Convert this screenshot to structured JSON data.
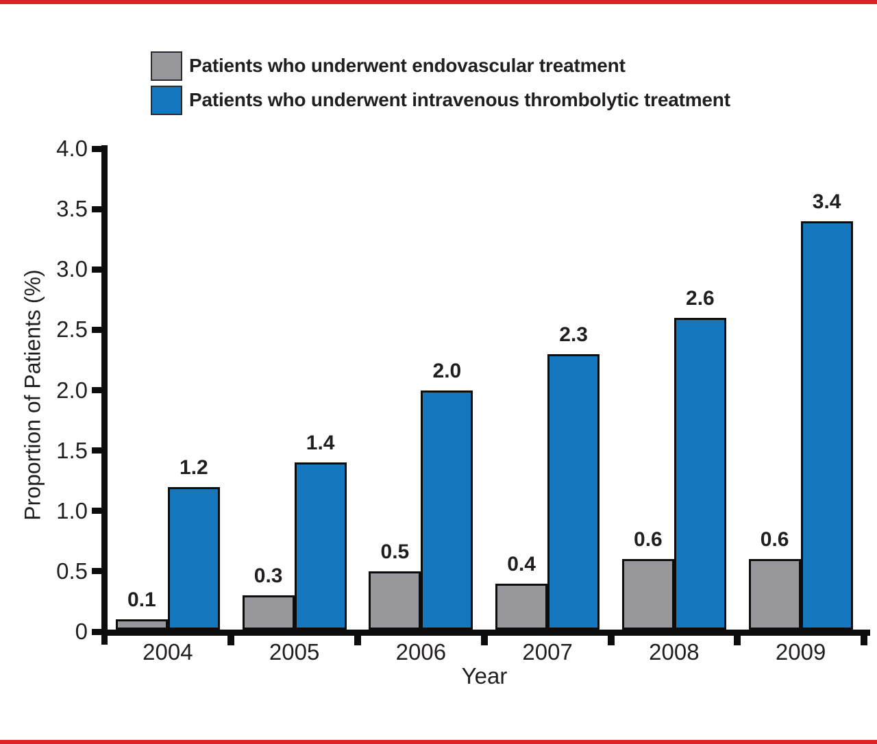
{
  "figure": {
    "border_color": "#DE2127",
    "background_color": "#FFFFFF",
    "text_color": "#221E1F",
    "axis_color": "#0D0D0D"
  },
  "legend": {
    "position": "top-left",
    "items": [
      {
        "label": "Patients who underwent endovascular treatment",
        "swatch_color": "#98989C"
      },
      {
        "label": "Patients who underwent intravenous thrombolytic treatment",
        "swatch_color": "#1577BE"
      }
    ]
  },
  "chart_data": {
    "type": "bar",
    "title": "",
    "categories": [
      "2004",
      "2005",
      "2006",
      "2007",
      "2008",
      "2009"
    ],
    "series": [
      {
        "name": "Patients who underwent endovascular treatment",
        "key": "endovascular",
        "color": "#98989C",
        "values": [
          0.1,
          0.3,
          0.5,
          0.4,
          0.6,
          0.6
        ]
      },
      {
        "name": "Patients who underwent intravenous thrombolytic treatment",
        "key": "thrombolytic",
        "color": "#1577BE",
        "values": [
          1.2,
          1.4,
          2.0,
          2.3,
          2.6,
          3.4
        ]
      }
    ],
    "xlabel": "Year",
    "ylabel": "Proportion of Patients (%)",
    "ylim": [
      0,
      4.0
    ],
    "ytick_labels": [
      "0",
      "0.5",
      "1.0",
      "1.5",
      "2.0",
      "2.5",
      "3.0",
      "3.5",
      "4.0"
    ],
    "ytick_step": 0.5,
    "grid": false,
    "bar_value_labels": true,
    "bar_value_label_style": "bold",
    "legend_position": "top"
  }
}
